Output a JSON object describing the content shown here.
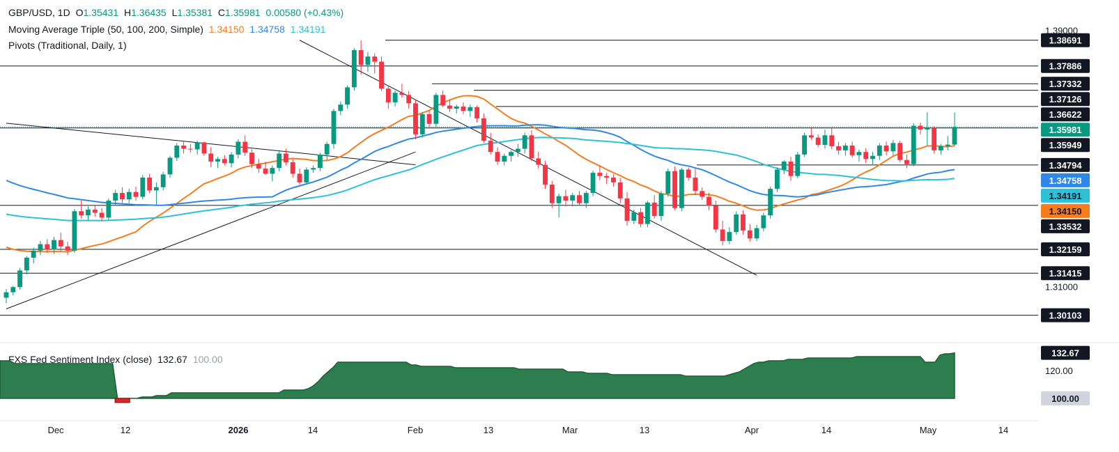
{
  "header": {
    "symbol": "GBP/USD, 1D",
    "ohlc": {
      "o_label": "O",
      "o": "1.35431",
      "h_label": "H",
      "h": "1.36435",
      "l_label": "L",
      "l": "1.35381",
      "c_label": "C",
      "c": "1.35981",
      "change": "0.00580 (+0.43%)"
    },
    "ma_title": "Moving Average Triple (50, 100, 200, Simple)",
    "ma_values": [
      "1.34150",
      "1.34758",
      "1.34191"
    ],
    "pivots_title": "Pivots (Traditional, Daily, 1)"
  },
  "indicator": {
    "title": "FXS Fed Sentiment Index (close)",
    "value": "132.67",
    "baseline": "100.00"
  },
  "colors": {
    "up": "#089981",
    "down": "#f23645",
    "ma50": "#f57c1f",
    "ma100": "#2f87e8",
    "ma200": "#2ec0d6",
    "line": "#131722",
    "sentiment_fill": "#2e7d4f",
    "sentiment_neg": "#d62828"
  },
  "chart_data": [
    {
      "type": "candlestick",
      "title": "GBP/USD, 1D",
      "ylim": [
        1.2955,
        1.3925
      ],
      "y_ticks": [
        "1.39000",
        "1.31000"
      ],
      "x_ticks": [
        "Dec",
        "12",
        "2026",
        "14",
        "Feb",
        "13",
        "Mar",
        "13",
        "Apr",
        "14",
        "May",
        "14"
      ],
      "price_tags": [
        {
          "label": "1.38691",
          "value": 1.38691,
          "style": "dark"
        },
        {
          "label": "1.37886",
          "value": 1.37886,
          "style": "dark"
        },
        {
          "label": "1.37332",
          "value": 1.37332,
          "style": "dark"
        },
        {
          "label": "1.37126",
          "value": 1.37126,
          "style": "dark"
        },
        {
          "label": "1.36622",
          "value": 1.36622,
          "style": "dark"
        },
        {
          "label": "1.35981",
          "value": 1.35981,
          "style": "up"
        },
        {
          "label": "1.35949",
          "value": 1.35949,
          "style": "dark"
        },
        {
          "label": "1.34794",
          "value": 1.34794,
          "style": "dark"
        },
        {
          "label": "1.34758",
          "value": 1.34758,
          "style": "ma100"
        },
        {
          "label": "1.34191",
          "value": 1.34191,
          "style": "ma200"
        },
        {
          "label": "1.34150",
          "value": 1.3415,
          "style": "ma50"
        },
        {
          "label": "1.33532",
          "value": 1.33532,
          "style": "dark"
        },
        {
          "label": "1.32159",
          "value": 1.32159,
          "style": "dark"
        },
        {
          "label": "1.31415",
          "value": 1.31415,
          "style": "dark"
        },
        {
          "label": "1.30103",
          "value": 1.30103,
          "style": "dark"
        }
      ],
      "candles": [
        [
          1.3065,
          1.3092,
          1.3048,
          1.3082
        ],
        [
          1.3082,
          1.3102,
          1.3072,
          1.3098
        ],
        [
          1.3098,
          1.3158,
          1.309,
          1.315
        ],
        [
          1.315,
          1.3195,
          1.3138,
          1.319
        ],
        [
          1.319,
          1.3222,
          1.3172,
          1.3212
        ],
        [
          1.3212,
          1.3242,
          1.3198,
          1.3232
        ],
        [
          1.3232,
          1.3248,
          1.3205,
          1.3215
        ],
        [
          1.3215,
          1.3255,
          1.3202,
          1.3245
        ],
        [
          1.3245,
          1.3268,
          1.321,
          1.3225
        ],
        [
          1.3225,
          1.324,
          1.3198,
          1.3212
        ],
        [
          1.3212,
          1.3342,
          1.3205,
          1.3335
        ],
        [
          1.3335,
          1.3368,
          1.3312,
          1.3322
        ],
        [
          1.3322,
          1.335,
          1.3305,
          1.334
        ],
        [
          1.334,
          1.3352,
          1.3318,
          1.333
        ],
        [
          1.333,
          1.3345,
          1.3305,
          1.3315
        ],
        [
          1.3315,
          1.3375,
          1.3308,
          1.3368
        ],
        [
          1.3368,
          1.3402,
          1.3352,
          1.3392
        ],
        [
          1.3392,
          1.341,
          1.336,
          1.3372
        ],
        [
          1.3372,
          1.3405,
          1.336,
          1.3395
        ],
        [
          1.3395,
          1.3412,
          1.3368,
          1.338
        ],
        [
          1.338,
          1.3448,
          1.3372,
          1.344
        ],
        [
          1.344,
          1.3452,
          1.3392,
          1.34
        ],
        [
          1.34,
          1.3425,
          1.3355,
          1.341
        ],
        [
          1.341,
          1.3458,
          1.34,
          1.345
        ],
        [
          1.345,
          1.3508,
          1.344,
          1.3502
        ],
        [
          1.3502,
          1.3548,
          1.3492,
          1.354
        ],
        [
          1.354,
          1.3555,
          1.3515,
          1.353
        ],
        [
          1.353,
          1.3545,
          1.3518,
          1.3528
        ],
        [
          1.3528,
          1.3555,
          1.3512,
          1.355
        ],
        [
          1.355,
          1.3552,
          1.3508,
          1.3515
        ],
        [
          1.3515,
          1.3535,
          1.3472,
          1.349
        ],
        [
          1.349,
          1.3505,
          1.347,
          1.3498
        ],
        [
          1.3498,
          1.351,
          1.3478,
          1.3485
        ],
        [
          1.3485,
          1.352,
          1.3472,
          1.3512
        ],
        [
          1.3512,
          1.356,
          1.35,
          1.3552
        ],
        [
          1.3552,
          1.3572,
          1.3508,
          1.3518
        ],
        [
          1.3518,
          1.3528,
          1.347,
          1.3482
        ],
        [
          1.3482,
          1.3498,
          1.3455,
          1.3468
        ],
        [
          1.3468,
          1.349,
          1.3448,
          1.3452
        ],
        [
          1.3452,
          1.3478,
          1.3428,
          1.347
        ],
        [
          1.347,
          1.3522,
          1.346,
          1.3515
        ],
        [
          1.3515,
          1.353,
          1.3478,
          1.3488
        ],
        [
          1.3488,
          1.3498,
          1.344,
          1.3452
        ],
        [
          1.3452,
          1.3468,
          1.3418,
          1.3425
        ],
        [
          1.3425,
          1.3472,
          1.3418,
          1.3465
        ],
        [
          1.3465,
          1.3478,
          1.3455,
          1.347
        ],
        [
          1.347,
          1.3518,
          1.346,
          1.3512
        ],
        [
          1.3512,
          1.3552,
          1.3495,
          1.3545
        ],
        [
          1.3545,
          1.3655,
          1.353,
          1.3648
        ],
        [
          1.3648,
          1.3678,
          1.3635,
          1.3668
        ],
        [
          1.3668,
          1.3728,
          1.3655,
          1.3722
        ],
        [
          1.3722,
          1.3845,
          1.3712,
          1.3838
        ],
        [
          1.3838,
          1.3869,
          1.3762,
          1.3792
        ],
        [
          1.3792,
          1.3832,
          1.377,
          1.3818
        ],
        [
          1.3818,
          1.3828,
          1.3765,
          1.3802
        ],
        [
          1.3802,
          1.3818,
          1.371,
          1.3718
        ],
        [
          1.3718,
          1.3728,
          1.3655,
          1.3675
        ],
        [
          1.3675,
          1.3712,
          1.3662,
          1.3705
        ],
        [
          1.3705,
          1.3733,
          1.369,
          1.3698
        ],
        [
          1.3698,
          1.371,
          1.3655,
          1.3672
        ],
        [
          1.3672,
          1.3682,
          1.356,
          1.3575
        ],
        [
          1.3575,
          1.3645,
          1.3565,
          1.3638
        ],
        [
          1.3638,
          1.365,
          1.3598,
          1.3608
        ],
        [
          1.3608,
          1.3705,
          1.3598,
          1.3698
        ],
        [
          1.3698,
          1.3712,
          1.366,
          1.3665
        ],
        [
          1.3665,
          1.3682,
          1.3645,
          1.3655
        ],
        [
          1.3655,
          1.3668,
          1.364,
          1.3662
        ],
        [
          1.3662,
          1.3675,
          1.3638,
          1.3648
        ],
        [
          1.3648,
          1.3668,
          1.363,
          1.366
        ],
        [
          1.366,
          1.3665,
          1.3612,
          1.3625
        ],
        [
          1.3625,
          1.364,
          1.3548,
          1.3555
        ],
        [
          1.3555,
          1.358,
          1.3512,
          1.352
        ],
        [
          1.352,
          1.3535,
          1.348,
          1.349
        ],
        [
          1.349,
          1.3515,
          1.3478,
          1.3508
        ],
        [
          1.3508,
          1.3525,
          1.349,
          1.352
        ],
        [
          1.352,
          1.3545,
          1.3505,
          1.353
        ],
        [
          1.353,
          1.358,
          1.3515,
          1.3572
        ],
        [
          1.3572,
          1.3588,
          1.3492,
          1.35
        ],
        [
          1.35,
          1.352,
          1.3468,
          1.348
        ],
        [
          1.348,
          1.3492,
          1.3405,
          1.3418
        ],
        [
          1.3418,
          1.343,
          1.3345,
          1.336
        ],
        [
          1.336,
          1.339,
          1.3315,
          1.3382
        ],
        [
          1.3382,
          1.3402,
          1.335,
          1.3368
        ],
        [
          1.3368,
          1.3392,
          1.335,
          1.3385
        ],
        [
          1.3385,
          1.3398,
          1.3352,
          1.336
        ],
        [
          1.336,
          1.3398,
          1.3345,
          1.3392
        ],
        [
          1.3392,
          1.3462,
          1.3382,
          1.3455
        ],
        [
          1.3455,
          1.3478,
          1.3432,
          1.3445
        ],
        [
          1.3445,
          1.3455,
          1.342,
          1.344
        ],
        [
          1.344,
          1.345,
          1.3412,
          1.3425
        ],
        [
          1.3425,
          1.344,
          1.336,
          1.3375
        ],
        [
          1.3375,
          1.3395,
          1.329,
          1.3305
        ],
        [
          1.3305,
          1.334,
          1.3295,
          1.3332
        ],
        [
          1.3332,
          1.3345,
          1.3285,
          1.3295
        ],
        [
          1.3295,
          1.3368,
          1.3285,
          1.3362
        ],
        [
          1.3362,
          1.3385,
          1.3312,
          1.332
        ],
        [
          1.332,
          1.3398,
          1.3305,
          1.339
        ],
        [
          1.339,
          1.3468,
          1.338,
          1.346
        ],
        [
          1.346,
          1.3475,
          1.3338,
          1.3345
        ],
        [
          1.3345,
          1.347,
          1.3335,
          1.3465
        ],
        [
          1.3465,
          1.3472,
          1.343,
          1.344
        ],
        [
          1.344,
          1.3468,
          1.3385,
          1.3398
        ],
        [
          1.3398,
          1.341,
          1.337,
          1.338
        ],
        [
          1.338,
          1.3392,
          1.3338,
          1.3352
        ],
        [
          1.3352,
          1.3368,
          1.3268,
          1.3278
        ],
        [
          1.3278,
          1.3305,
          1.3228,
          1.3242
        ],
        [
          1.3242,
          1.3285,
          1.3232,
          1.327
        ],
        [
          1.327,
          1.3335,
          1.3262,
          1.3325
        ],
        [
          1.3325,
          1.3338,
          1.3262,
          1.3275
        ],
        [
          1.3275,
          1.3295,
          1.324,
          1.325
        ],
        [
          1.325,
          1.3292,
          1.3242,
          1.3282
        ],
        [
          1.3282,
          1.333,
          1.3272,
          1.3322
        ],
        [
          1.3322,
          1.3412,
          1.3312,
          1.3405
        ],
        [
          1.3405,
          1.3472,
          1.3395,
          1.3465
        ],
        [
          1.3465,
          1.3495,
          1.345,
          1.349
        ],
        [
          1.349,
          1.3505,
          1.343,
          1.3445
        ],
        [
          1.3445,
          1.352,
          1.3438,
          1.3512
        ],
        [
          1.3512,
          1.358,
          1.3505,
          1.3572
        ],
        [
          1.3572,
          1.3598,
          1.3558,
          1.3565
        ],
        [
          1.3565,
          1.3575,
          1.3535,
          1.3542
        ],
        [
          1.3542,
          1.359,
          1.353,
          1.3572
        ],
        [
          1.3572,
          1.3598,
          1.3528,
          1.3538
        ],
        [
          1.3538,
          1.3552,
          1.3512,
          1.3525
        ],
        [
          1.3525,
          1.3548,
          1.3508,
          1.354
        ],
        [
          1.354,
          1.3552,
          1.3502,
          1.351
        ],
        [
          1.351,
          1.3528,
          1.349,
          1.352
        ],
        [
          1.352,
          1.3532,
          1.3485,
          1.3498
        ],
        [
          1.3498,
          1.352,
          1.3482,
          1.3508
        ],
        [
          1.3508,
          1.3548,
          1.3495,
          1.354
        ],
        [
          1.354,
          1.3552,
          1.351,
          1.3522
        ],
        [
          1.3522,
          1.3558,
          1.351,
          1.3548
        ],
        [
          1.3548,
          1.3555,
          1.3488,
          1.3495
        ],
        [
          1.3495,
          1.3512,
          1.347,
          1.3482
        ],
        [
          1.3482,
          1.361,
          1.3475,
          1.3602
        ],
        [
          1.3602,
          1.3612,
          1.3575,
          1.359
        ],
        [
          1.359,
          1.36435,
          1.354,
          1.3595
        ],
        [
          1.3595,
          1.36,
          1.3515,
          1.3525
        ],
        [
          1.3525,
          1.3545,
          1.3512,
          1.3538
        ],
        [
          1.3538,
          1.357,
          1.3525,
          1.3543
        ],
        [
          1.35431,
          1.36435,
          1.35381,
          1.35981
        ]
      ]
    },
    {
      "type": "area",
      "title": "FXS Fed Sentiment Index (close)",
      "ylim": [
        96,
        136
      ],
      "y_ticks": [
        "120.00"
      ],
      "price_tags": [
        {
          "label": "132.67",
          "value": 132.67,
          "style": "dark"
        },
        {
          "label": "100.00",
          "value": 100.0,
          "style": "gray"
        }
      ],
      "values": [
        127,
        127,
        127,
        125,
        125,
        125,
        125,
        125,
        125,
        125,
        125,
        125,
        125,
        125,
        125,
        125,
        125,
        125,
        125,
        125,
        125,
        125,
        125,
        125,
        97,
        97,
        97,
        100,
        100,
        101,
        101,
        101,
        102,
        102,
        102,
        104,
        104,
        104,
        104,
        104,
        104,
        104,
        104,
        104,
        104,
        104,
        104,
        104,
        104,
        104,
        104,
        104,
        104,
        104,
        104,
        104,
        104,
        104,
        106,
        106,
        106,
        106,
        106,
        107,
        109,
        112,
        116,
        119,
        122,
        126,
        126,
        126,
        126,
        126,
        126,
        126,
        126,
        126,
        126,
        126,
        126,
        126,
        126,
        126,
        124,
        124,
        123,
        123,
        123,
        123,
        123,
        123,
        123,
        122,
        122,
        122,
        122,
        122,
        122,
        122,
        122,
        122,
        122,
        122,
        122,
        122,
        121,
        121,
        121,
        121,
        121,
        121,
        121,
        121,
        121,
        121,
        119,
        119,
        119,
        119,
        118,
        118,
        118,
        118,
        118,
        117,
        117,
        117,
        117,
        117,
        117,
        117,
        117,
        117,
        117,
        117,
        117,
        117,
        117,
        117,
        116,
        116,
        116,
        116,
        116,
        116,
        116,
        116,
        116,
        117,
        118,
        119,
        121,
        123,
        125,
        126,
        126,
        127,
        127,
        127,
        127,
        128,
        128,
        128,
        128,
        129,
        129,
        129,
        129,
        129,
        129,
        129,
        129,
        129,
        129,
        130,
        130,
        130,
        130,
        130,
        130,
        130,
        130,
        130,
        130,
        130,
        130,
        130,
        130,
        126,
        126,
        126,
        131,
        132,
        132,
        132.67
      ]
    }
  ]
}
